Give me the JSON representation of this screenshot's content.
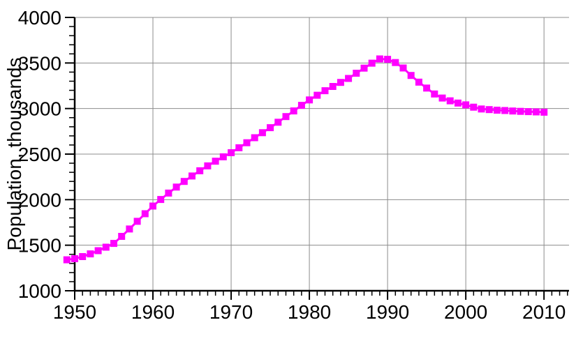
{
  "chart_data": {
    "type": "line",
    "title": "",
    "xlabel": "",
    "ylabel": "Population, thousands",
    "legend": null,
    "grid": true,
    "series_name": "population",
    "marker": "filled-square",
    "colors": {
      "series": "#ff00ff",
      "grid": "#8c8c8c",
      "axis": "#000000",
      "background": "#ffffff",
      "text": "#000000"
    },
    "xlim": [
      1950,
      2013.2
    ],
    "ylim": [
      1000,
      4000
    ],
    "x_ticks_major": [
      1950,
      1960,
      1970,
      1980,
      1990,
      2000,
      2010
    ],
    "x_minor_step": 1,
    "y_ticks_major": [
      1000,
      1500,
      2000,
      2500,
      3000,
      3500,
      4000
    ],
    "y_minor_step": 100,
    "x": [
      1949,
      1950,
      1951,
      1952,
      1953,
      1954,
      1955,
      1956,
      1957,
      1958,
      1959,
      1960,
      1961,
      1962,
      1963,
      1964,
      1965,
      1966,
      1967,
      1968,
      1969,
      1970,
      1971,
      1972,
      1973,
      1974,
      1975,
      1976,
      1977,
      1978,
      1979,
      1980,
      1981,
      1982,
      1983,
      1984,
      1985,
      1986,
      1987,
      1988,
      1989,
      1990,
      1991,
      1992,
      1993,
      1994,
      1995,
      1996,
      1997,
      1998,
      1999,
      2000,
      2001,
      2002,
      2003,
      2004,
      2005,
      2006,
      2007,
      2008,
      2009,
      2010
    ],
    "y": [
      1340,
      1352,
      1375,
      1405,
      1440,
      1478,
      1520,
      1597,
      1678,
      1762,
      1846,
      1930,
      2002,
      2072,
      2138,
      2200,
      2260,
      2317,
      2371,
      2422,
      2470,
      2515,
      2570,
      2625,
      2680,
      2735,
      2790,
      2850,
      2912,
      2974,
      3035,
      3095,
      3146,
      3196,
      3242,
      3287,
      3330,
      3388,
      3444,
      3498,
      3545,
      3540,
      3505,
      3445,
      3363,
      3290,
      3225,
      3160,
      3115,
      3085,
      3060,
      3040,
      3015,
      2995,
      2988,
      2982,
      2978,
      2973,
      2969,
      2966,
      2963,
      2960
    ]
  }
}
